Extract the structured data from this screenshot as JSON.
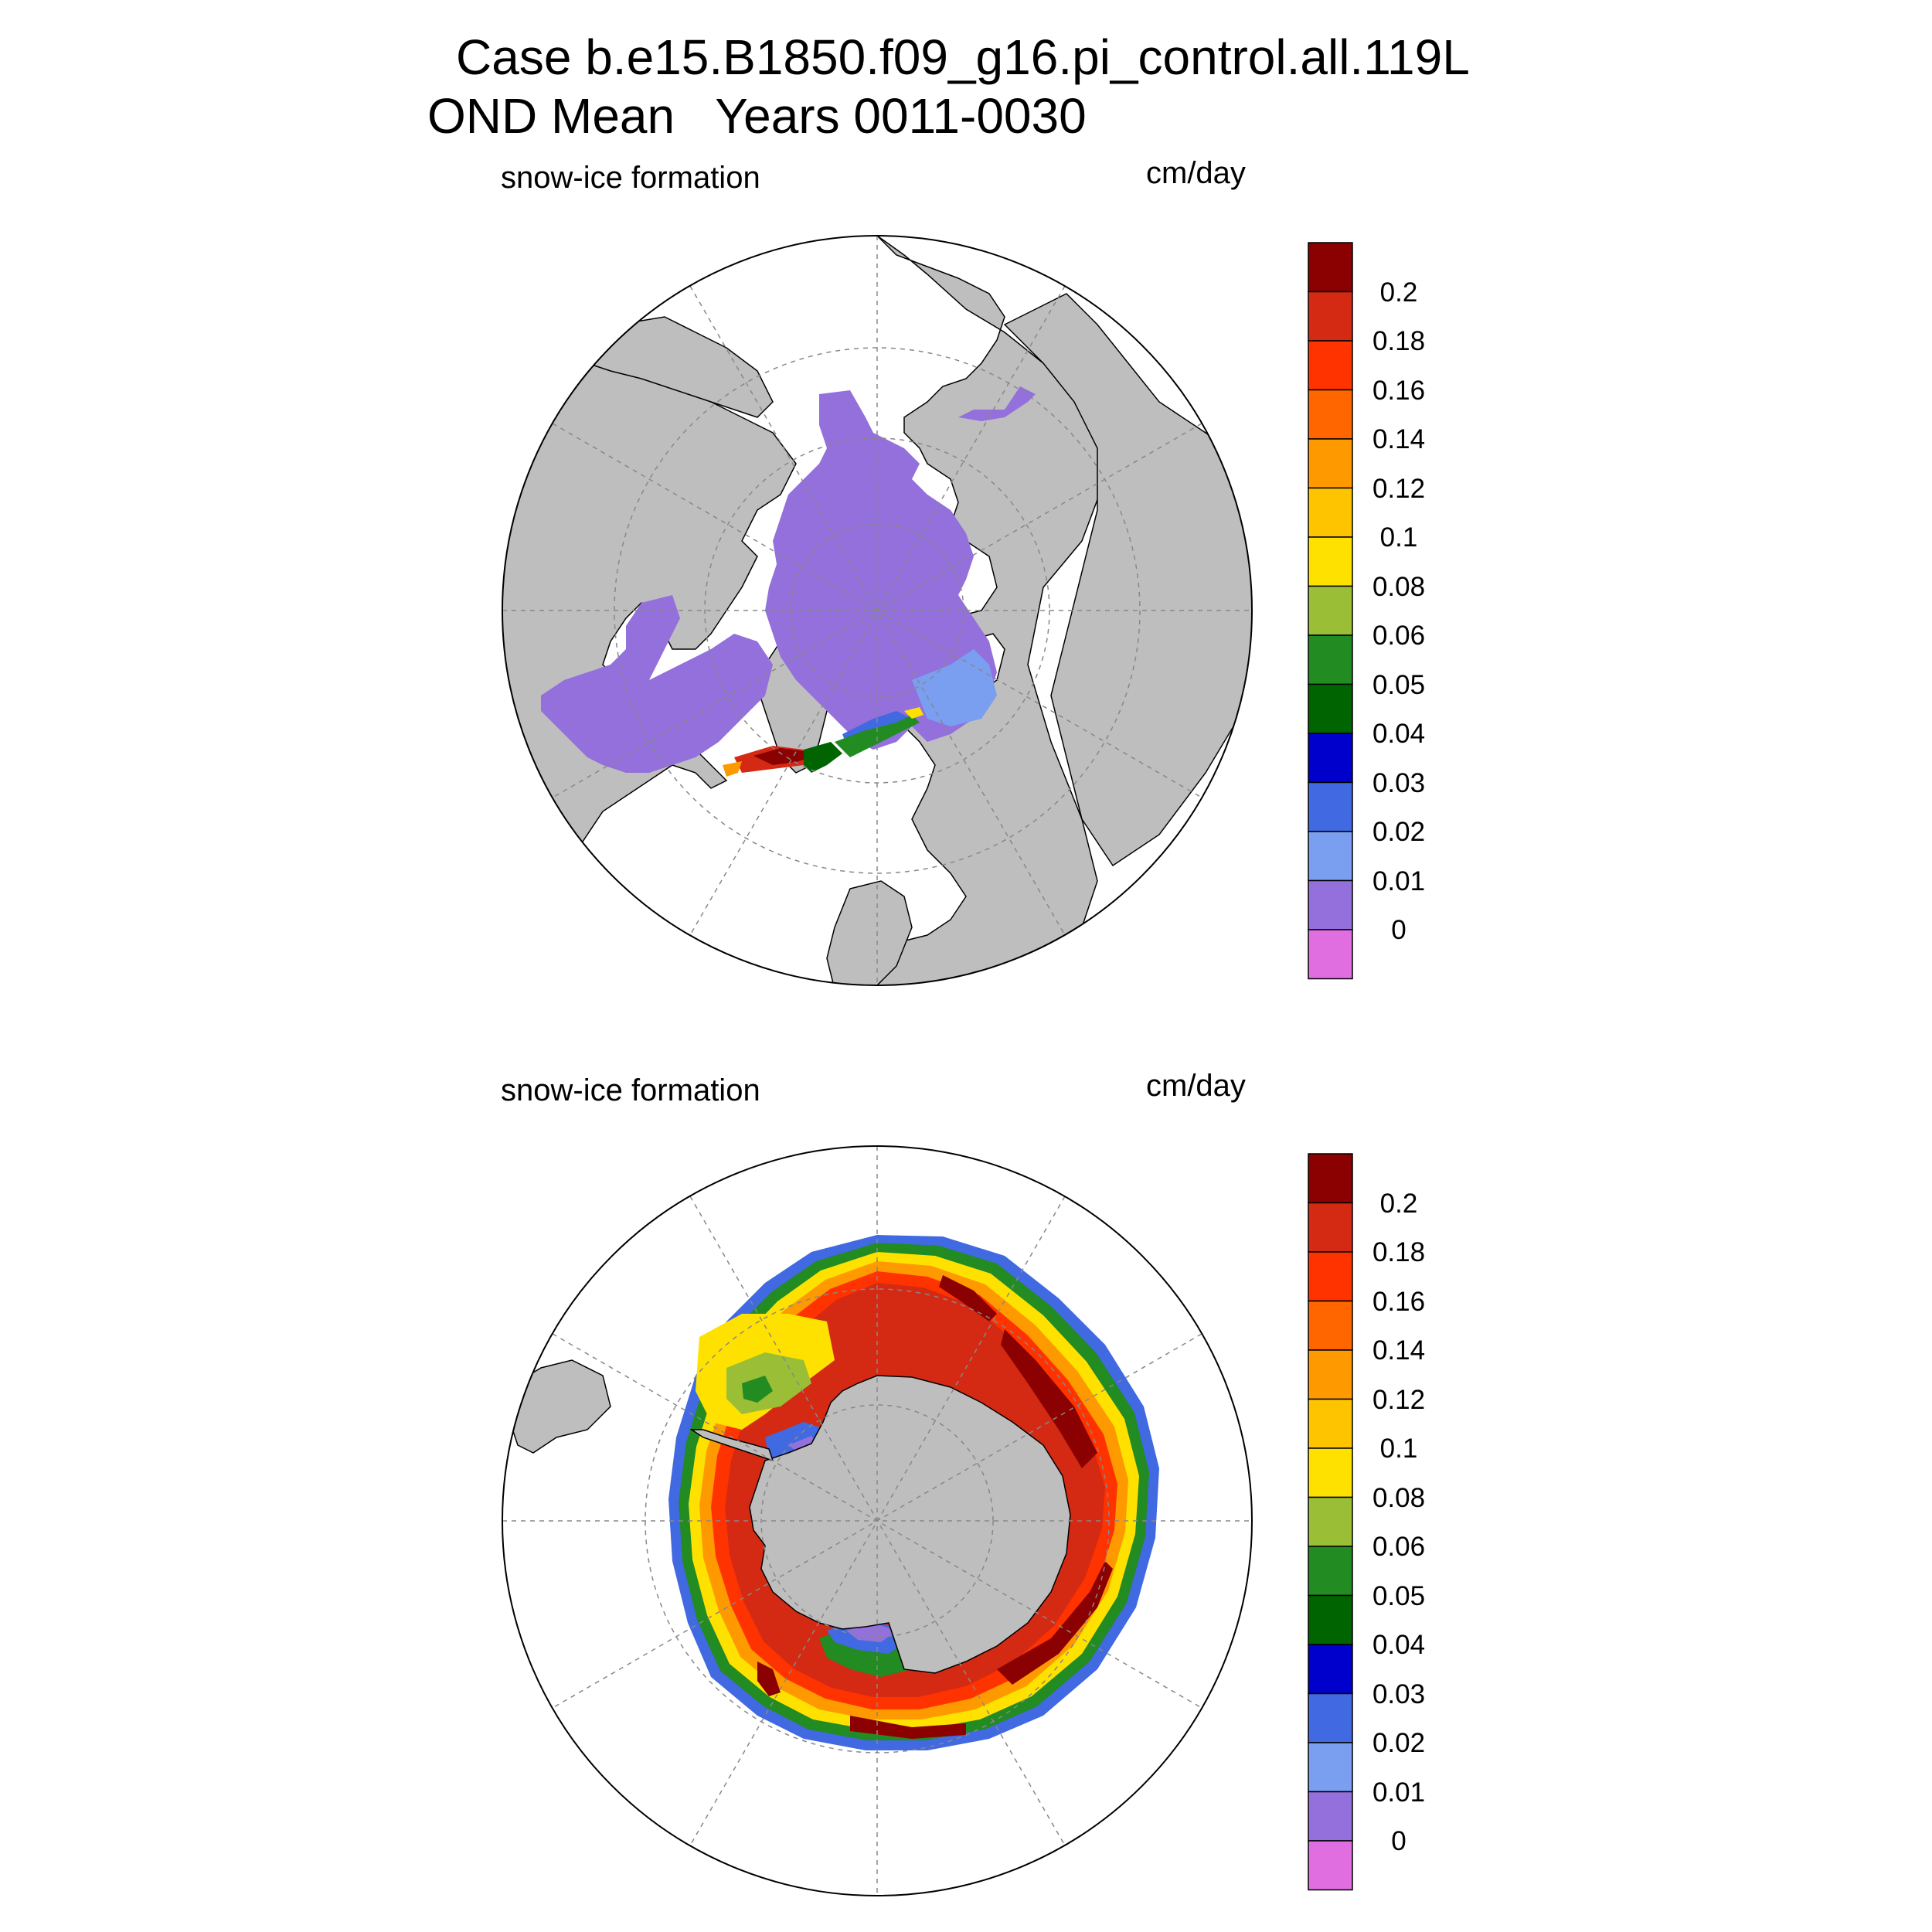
{
  "title": {
    "line1": "Case b.e15.B1850.f09_g16.pi_control.all.119L",
    "line2": "OND Mean   Years 0011-0030"
  },
  "panels": [
    {
      "id": "north",
      "hemisphere": "Northern Hemisphere (polar stereographic)",
      "variable_label": "snow-ice formation",
      "units_label": "cm/day"
    },
    {
      "id": "south",
      "hemisphere": "Southern Hemisphere (polar stereographic)",
      "variable_label": "snow-ice formation",
      "units_label": "cm/day"
    }
  ],
  "colorbar": {
    "labels": [
      "0.2",
      "0.18",
      "0.16",
      "0.14",
      "0.12",
      "0.1",
      "0.08",
      "0.06",
      "0.05",
      "0.04",
      "0.03",
      "0.02",
      "0.01",
      "0"
    ],
    "colors_top_to_bottom": [
      "#8b0000",
      "#d42a14",
      "#ff3300",
      "#ff6600",
      "#ff9900",
      "#ffc400",
      "#ffe100",
      "#9abf36",
      "#228b22",
      "#006400",
      "#0000cd",
      "#4169e1",
      "#7a9ef0",
      "#9370db",
      "#e06ee0"
    ]
  },
  "colors": {
    "land": "#bebebe",
    "ocean": "#ffffff",
    "gridline": "#888888"
  }
}
